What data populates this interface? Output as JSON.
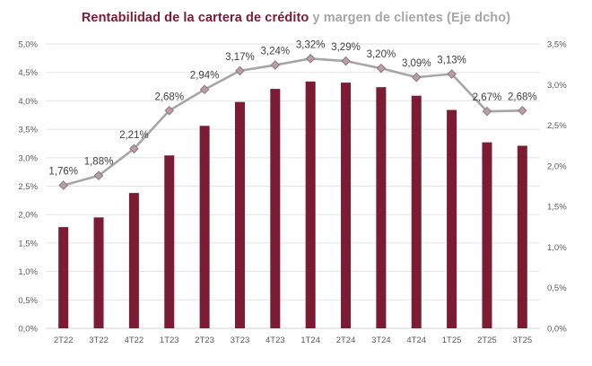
{
  "chart_data": {
    "type": "bar+line",
    "title_part1": "Rentabilidad de la cartera de crédito",
    "title_part2": " y margen de clientes (Eje dcho)",
    "categories": [
      "2T22",
      "3T22",
      "4T22",
      "1T23",
      "2T23",
      "3T23",
      "4T23",
      "1T24",
      "2T24",
      "3T24",
      "4T24",
      "1T25",
      "2T25",
      "3T25"
    ],
    "series": [
      {
        "name": "Rentabilidad de la cartera de crédito",
        "type": "bar",
        "axis": "left",
        "color": "#7b1b34",
        "values": [
          1.78,
          1.95,
          2.38,
          3.04,
          3.56,
          3.98,
          4.21,
          4.34,
          4.32,
          4.24,
          4.09,
          3.84,
          3.27,
          3.21
        ]
      },
      {
        "name": "Margen de clientes",
        "type": "line",
        "axis": "right",
        "color": "#a6a6a6",
        "marker_color": "#c09aa4",
        "values": [
          1.76,
          1.88,
          2.21,
          2.68,
          2.94,
          3.17,
          3.24,
          3.32,
          3.29,
          3.2,
          3.09,
          3.13,
          2.67,
          2.68
        ],
        "labels": [
          "1,76%",
          "1,88%",
          "2,21%",
          "2,68%",
          "2,94%",
          "3,17%",
          "3,24%",
          "3,32%",
          "3,29%",
          "3,20%",
          "3,09%",
          "3,13%",
          "2,67%",
          "2,68%"
        ]
      }
    ],
    "y_left": {
      "range": [
        0,
        5
      ],
      "ticks": [
        0,
        0.5,
        1,
        1.5,
        2,
        2.5,
        3,
        3.5,
        4,
        4.5,
        5
      ],
      "tick_labels": [
        "0,0%",
        "0,5%",
        "1,0%",
        "1,5%",
        "2,0%",
        "2,5%",
        "3,0%",
        "3,5%",
        "4,0%",
        "4,5%",
        "5,0%"
      ]
    },
    "y_right": {
      "range": [
        0,
        3.5
      ],
      "ticks": [
        0,
        0.5,
        1,
        1.5,
        2,
        2.5,
        3,
        3.5
      ],
      "tick_labels": [
        "0,0%",
        "0,5%",
        "1,0%",
        "1,5%",
        "2,0%",
        "2,5%",
        "3,0%",
        "3,5%"
      ]
    },
    "grid": true,
    "legend": "none"
  }
}
